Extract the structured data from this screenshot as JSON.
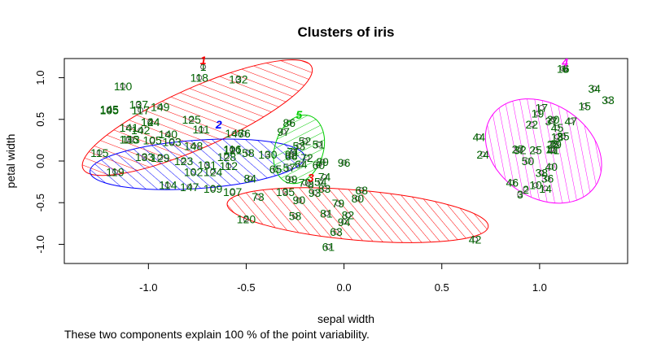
{
  "chart_data": {
    "type": "scatter",
    "title": "Clusters of iris",
    "xlabel": "sepal width",
    "ylabel": "petal width",
    "caption": "These two components explain 100 % of the point variability.",
    "xlim": [
      -1.43,
      1.45
    ],
    "ylim": [
      -1.23,
      1.23
    ],
    "x_ticks": [
      -1.0,
      -0.5,
      0.0,
      0.5,
      1.0
    ],
    "x_tick_labels": [
      "-1.0",
      "-0.5",
      "0.0",
      "0.5",
      "1.0"
    ],
    "y_ticks": [
      -1.0,
      -0.5,
      0.0,
      0.5,
      1.0
    ],
    "y_tick_labels": [
      "-1.0",
      "-0.5",
      "0.0",
      "0.5",
      "1.0"
    ],
    "grid": false,
    "colors": {
      "points": "#555555",
      "labels": "#006400",
      "cluster1": "#ff0000",
      "cluster2": "#0000ff",
      "cluster3": "#ff0000",
      "cluster4": "#ff00ff",
      "cluster5": "#00cc00"
    },
    "clusters": [
      {
        "label": "1",
        "color": "#ff0000",
        "cx": -0.75,
        "cy": 0.52,
        "rx": 0.64,
        "ry": 0.36,
        "angle_deg": 24,
        "label_x": -0.72,
        "label_y": 1.13
      },
      {
        "label": "2",
        "color": "#0000ff",
        "cx": -0.75,
        "cy": -0.04,
        "rx": 0.55,
        "ry": 0.29,
        "angle_deg": 4,
        "label_x": -0.64,
        "label_y": 0.36
      },
      {
        "label": "3",
        "color": "#ff0000",
        "cx": 0.07,
        "cy": -0.65,
        "rx": 0.67,
        "ry": 0.3,
        "angle_deg": -5,
        "label_x": -0.17,
        "label_y": -0.28
      },
      {
        "label": "4",
        "color": "#ff00ff",
        "cx": 1.02,
        "cy": 0.12,
        "rx": 0.32,
        "ry": 0.56,
        "angle_deg": -34,
        "label_x": 1.13,
        "label_y": 1.11
      },
      {
        "label": "5",
        "color": "#00cc00",
        "cx": -0.23,
        "cy": 0.14,
        "rx": 0.18,
        "ry": 0.29,
        "angle_deg": 72,
        "label_x": -0.23,
        "label_y": 0.48
      }
    ],
    "points": [
      {
        "label": "1",
        "x": -0.72,
        "y": 1.13
      },
      {
        "label": "6",
        "x": 1.13,
        "y": 1.11
      },
      {
        "label": "16",
        "x": 1.12,
        "y": 1.11
      },
      {
        "label": "118",
        "x": -0.74,
        "y": 1.0
      },
      {
        "label": "132",
        "x": -0.54,
        "y": 0.98
      },
      {
        "label": "110",
        "x": -1.13,
        "y": 0.9
      },
      {
        "label": "34",
        "x": 1.28,
        "y": 0.87
      },
      {
        "label": "33",
        "x": 1.35,
        "y": 0.73
      },
      {
        "label": "15",
        "x": 1.23,
        "y": 0.66
      },
      {
        "label": "137",
        "x": -1.05,
        "y": 0.68
      },
      {
        "label": "149",
        "x": -0.94,
        "y": 0.65
      },
      {
        "label": "105",
        "x": -1.2,
        "y": 0.61
      },
      {
        "label": "145",
        "x": -1.2,
        "y": 0.62
      },
      {
        "label": "117",
        "x": -1.04,
        "y": 0.61
      },
      {
        "label": "17",
        "x": 1.01,
        "y": 0.64
      },
      {
        "label": "19",
        "x": 0.99,
        "y": 0.57
      },
      {
        "label": "125",
        "x": -0.78,
        "y": 0.5
      },
      {
        "label": "124",
        "x": -0.99,
        "y": 0.47
      },
      {
        "label": "144",
        "x": -0.99,
        "y": 0.47
      },
      {
        "label": "20",
        "x": 1.07,
        "y": 0.5
      },
      {
        "label": "37",
        "x": 1.06,
        "y": 0.48
      },
      {
        "label": "47",
        "x": 1.16,
        "y": 0.48
      },
      {
        "label": "22",
        "x": 0.96,
        "y": 0.44
      },
      {
        "label": "45",
        "x": 1.09,
        "y": 0.4
      },
      {
        "label": "141",
        "x": -1.1,
        "y": 0.4
      },
      {
        "label": "142",
        "x": -1.04,
        "y": 0.37
      },
      {
        "label": "111",
        "x": -0.73,
        "y": 0.38
      },
      {
        "label": "146",
        "x": -0.56,
        "y": 0.33
      },
      {
        "label": "76",
        "x": -0.51,
        "y": 0.33
      },
      {
        "label": "86",
        "x": -0.28,
        "y": 0.46
      },
      {
        "label": "97",
        "x": -0.31,
        "y": 0.35
      },
      {
        "label": "136",
        "x": -1.1,
        "y": 0.26
      },
      {
        "label": "113",
        "x": -1.09,
        "y": 0.26
      },
      {
        "label": "140",
        "x": -0.9,
        "y": 0.32
      },
      {
        "label": "105",
        "x": -0.98,
        "y": 0.25
      },
      {
        "label": "103",
        "x": -0.88,
        "y": 0.23
      },
      {
        "label": "148",
        "x": -0.77,
        "y": 0.18
      },
      {
        "label": "52",
        "x": -0.2,
        "y": 0.24
      },
      {
        "label": "51",
        "x": -0.13,
        "y": 0.2
      },
      {
        "label": "44",
        "x": 0.69,
        "y": 0.29
      },
      {
        "label": "18",
        "x": 1.09,
        "y": 0.29
      },
      {
        "label": "28",
        "x": 1.07,
        "y": 0.2
      },
      {
        "label": "35",
        "x": 1.12,
        "y": 0.3
      },
      {
        "label": "29",
        "x": 1.08,
        "y": 0.2
      },
      {
        "label": "115",
        "x": -1.25,
        "y": 0.1
      },
      {
        "label": "133",
        "x": -1.02,
        "y": 0.05
      },
      {
        "label": "129",
        "x": -0.94,
        "y": 0.04
      },
      {
        "label": "53",
        "x": -0.23,
        "y": 0.18
      },
      {
        "label": "71",
        "x": -0.26,
        "y": 0.11
      },
      {
        "label": "66",
        "x": -0.27,
        "y": 0.06
      },
      {
        "label": "27",
        "x": 0.89,
        "y": 0.14
      },
      {
        "label": "24",
        "x": 0.71,
        "y": 0.08
      },
      {
        "label": "32",
        "x": 0.9,
        "y": 0.13
      },
      {
        "label": "41",
        "x": 1.07,
        "y": 0.13
      },
      {
        "label": "25",
        "x": 0.98,
        "y": 0.13
      },
      {
        "label": "11",
        "x": 1.06,
        "y": 0.14
      },
      {
        "label": "116",
        "x": -0.57,
        "y": 0.14
      },
      {
        "label": "121",
        "x": -0.57,
        "y": 0.13
      },
      {
        "label": "58",
        "x": -0.49,
        "y": 0.1
      },
      {
        "label": "130",
        "x": -0.39,
        "y": 0.08
      },
      {
        "label": "92",
        "x": -0.27,
        "y": 0.08
      },
      {
        "label": "89",
        "x": -0.11,
        "y": -0.01
      },
      {
        "label": "96",
        "x": 0.0,
        "y": -0.02
      },
      {
        "label": "119",
        "x": -1.17,
        "y": -0.13
      },
      {
        "label": "123",
        "x": -0.82,
        "y": 0.0
      },
      {
        "label": "102",
        "x": -0.77,
        "y": -0.13
      },
      {
        "label": "131",
        "x": -0.7,
        "y": -0.05
      },
      {
        "label": "112",
        "x": -0.59,
        "y": -0.06
      },
      {
        "label": "128",
        "x": -0.6,
        "y": 0.05
      },
      {
        "label": "124",
        "x": -0.67,
        "y": -0.13
      },
      {
        "label": "72",
        "x": -0.19,
        "y": 0.04
      },
      {
        "label": "65",
        "x": -0.35,
        "y": -0.1
      },
      {
        "label": "57",
        "x": -0.28,
        "y": -0.08
      },
      {
        "label": "64",
        "x": -0.22,
        "y": -0.04
      },
      {
        "label": "60",
        "x": -0.13,
        "y": -0.05
      },
      {
        "label": "50",
        "x": 0.94,
        "y": 0.0
      },
      {
        "label": "40",
        "x": 1.06,
        "y": -0.07
      },
      {
        "label": "38",
        "x": 1.01,
        "y": -0.14
      },
      {
        "label": "84",
        "x": -0.48,
        "y": -0.21
      },
      {
        "label": "147",
        "x": -0.79,
        "y": -0.31
      },
      {
        "label": "114",
        "x": -0.9,
        "y": -0.29
      },
      {
        "label": "109",
        "x": -0.67,
        "y": -0.33
      },
      {
        "label": "107",
        "x": -0.57,
        "y": -0.37
      },
      {
        "label": "74",
        "x": -0.1,
        "y": -0.19
      },
      {
        "label": "54",
        "x": -0.12,
        "y": -0.25
      },
      {
        "label": "70",
        "x": -0.2,
        "y": -0.26
      },
      {
        "label": "99",
        "x": -0.27,
        "y": -0.22
      },
      {
        "label": "36",
        "x": 1.04,
        "y": -0.21
      },
      {
        "label": "46",
        "x": 0.86,
        "y": -0.26
      },
      {
        "label": "10",
        "x": 0.98,
        "y": -0.29
      },
      {
        "label": "2",
        "x": 0.93,
        "y": -0.34
      },
      {
        "label": "14",
        "x": 1.03,
        "y": -0.33
      },
      {
        "label": "3",
        "x": 0.9,
        "y": -0.4
      },
      {
        "label": "73",
        "x": -0.44,
        "y": -0.43
      },
      {
        "label": "135",
        "x": -0.3,
        "y": -0.37
      },
      {
        "label": "3",
        "x": -0.17,
        "y": -0.28
      },
      {
        "label": "83",
        "x": -0.1,
        "y": -0.33
      },
      {
        "label": "93",
        "x": -0.15,
        "y": -0.38
      },
      {
        "label": "68",
        "x": 0.09,
        "y": -0.35
      },
      {
        "label": "80",
        "x": 0.07,
        "y": -0.45
      },
      {
        "label": "90",
        "x": -0.23,
        "y": -0.47
      },
      {
        "label": "79",
        "x": -0.03,
        "y": -0.51
      },
      {
        "label": "81",
        "x": -0.09,
        "y": -0.63
      },
      {
        "label": "82",
        "x": 0.02,
        "y": -0.65
      },
      {
        "label": "120",
        "x": -0.5,
        "y": -0.7
      },
      {
        "label": "58",
        "x": -0.25,
        "y": -0.66
      },
      {
        "label": "94",
        "x": 0.0,
        "y": -0.73
      },
      {
        "label": "63",
        "x": -0.04,
        "y": -0.85
      },
      {
        "label": "61",
        "x": -0.08,
        "y": -1.03
      },
      {
        "label": "42",
        "x": 0.67,
        "y": -0.94
      }
    ]
  }
}
